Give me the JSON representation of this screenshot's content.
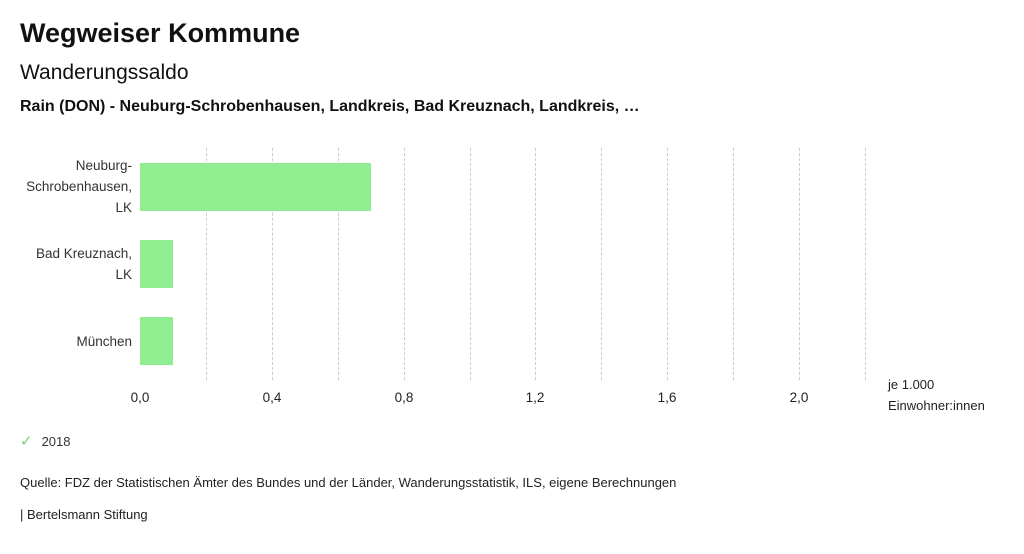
{
  "header": {
    "title": "Wegweiser Kommune",
    "subtitle": "Wanderungssaldo",
    "context": "Rain (DON) - Neuburg-Schrobenhausen, Landkreis, Bad Kreuznach, Landkreis, …"
  },
  "chart_data": {
    "type": "bar",
    "orientation": "horizontal",
    "title": "Wanderungssaldo",
    "categories": [
      "Neuburg-Schrobenhausen, LK",
      "Bad Kreuznach, LK",
      "München"
    ],
    "category_lines": [
      [
        "Neuburg-",
        "Schrobenhausen,",
        "LK"
      ],
      [
        "Bad Kreuznach,",
        "LK"
      ],
      [
        "München"
      ]
    ],
    "series": [
      {
        "name": "2018",
        "values": [
          0.7,
          0.1,
          0.1
        ]
      }
    ],
    "xlim": [
      0,
      2.2
    ],
    "x_ticks": [
      0.0,
      0.4,
      0.8,
      1.2,
      1.6,
      2.0
    ],
    "x_tick_labels": [
      "0,0",
      "0,4",
      "0,8",
      "1,2",
      "1,6",
      "2,0"
    ],
    "gridline_step": 0.2,
    "grid": true,
    "xlabel_lines": [
      "je 1.000",
      "Einwohner:innen"
    ],
    "bar_color": "#90ee90"
  },
  "legend": {
    "items": [
      {
        "label": "2018",
        "marker": "check-icon",
        "color": "#6fd36f"
      }
    ]
  },
  "footer": {
    "source": "Quelle: FDZ der Statistischen Ämter des Bundes und der Länder, Wanderungsstatistik, ILS, eigene Berechnungen",
    "branding": "| Bertelsmann Stiftung"
  },
  "colors": {
    "bar": "#90ee90",
    "check": "#6fd36f",
    "grid": "#cccccc"
  }
}
